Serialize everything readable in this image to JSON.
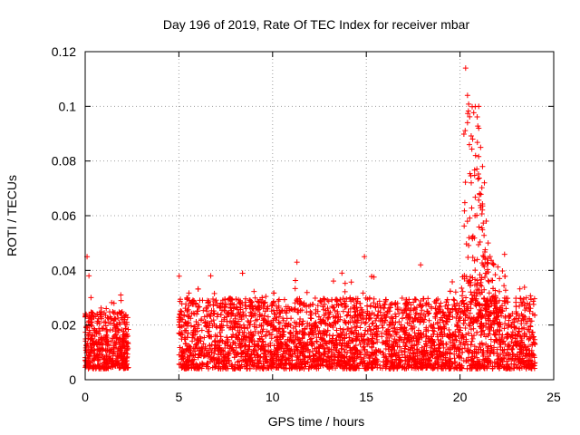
{
  "chart_data": {
    "type": "scatter",
    "title": "Day 196 of 2019, Rate Of TEC Index for receiver mbar",
    "xlabel": "GPS time / hours",
    "ylabel": "ROTI / TECUs",
    "xlim": [
      0,
      25
    ],
    "ylim": [
      0,
      0.12
    ],
    "xticks": [
      0,
      5,
      10,
      15,
      20,
      25
    ],
    "yticks": [
      0,
      0.02,
      0.04,
      0.06,
      0.08,
      0.1,
      0.12
    ],
    "ytick_labels": [
      "0",
      "0.02",
      "0.04",
      "0.06",
      "0.08",
      "0.1",
      "0.12"
    ],
    "grid": true,
    "marker": "+",
    "color": "#ff0000",
    "coverage": [
      {
        "x_start": 0,
        "x_end": 2.3,
        "typical_min": 0.004,
        "typical_max": 0.025
      },
      {
        "x_start": 5.0,
        "x_end": 24.0,
        "typical_min": 0.004,
        "typical_max": 0.03
      }
    ],
    "notable_points": [
      {
        "x": 0.1,
        "y": 0.045
      },
      {
        "x": 0.2,
        "y": 0.038
      },
      {
        "x": 1.9,
        "y": 0.031
      },
      {
        "x": 6.7,
        "y": 0.038
      },
      {
        "x": 11.3,
        "y": 0.043
      },
      {
        "x": 13.7,
        "y": 0.039
      },
      {
        "x": 14.9,
        "y": 0.045
      },
      {
        "x": 17.9,
        "y": 0.042
      },
      {
        "x": 20.3,
        "y": 0.114
      },
      {
        "x": 20.4,
        "y": 0.104
      },
      {
        "x": 20.4,
        "y": 0.094
      },
      {
        "x": 20.5,
        "y": 0.086
      },
      {
        "x": 20.6,
        "y": 0.072
      },
      {
        "x": 20.8,
        "y": 0.06
      },
      {
        "x": 21.0,
        "y": 0.1
      },
      {
        "x": 21.0,
        "y": 0.092
      },
      {
        "x": 21.1,
        "y": 0.085
      },
      {
        "x": 21.2,
        "y": 0.078
      },
      {
        "x": 21.3,
        "y": 0.072
      },
      {
        "x": 21.4,
        "y": 0.058
      },
      {
        "x": 21.5,
        "y": 0.05
      },
      {
        "x": 21.8,
        "y": 0.042
      }
    ]
  }
}
